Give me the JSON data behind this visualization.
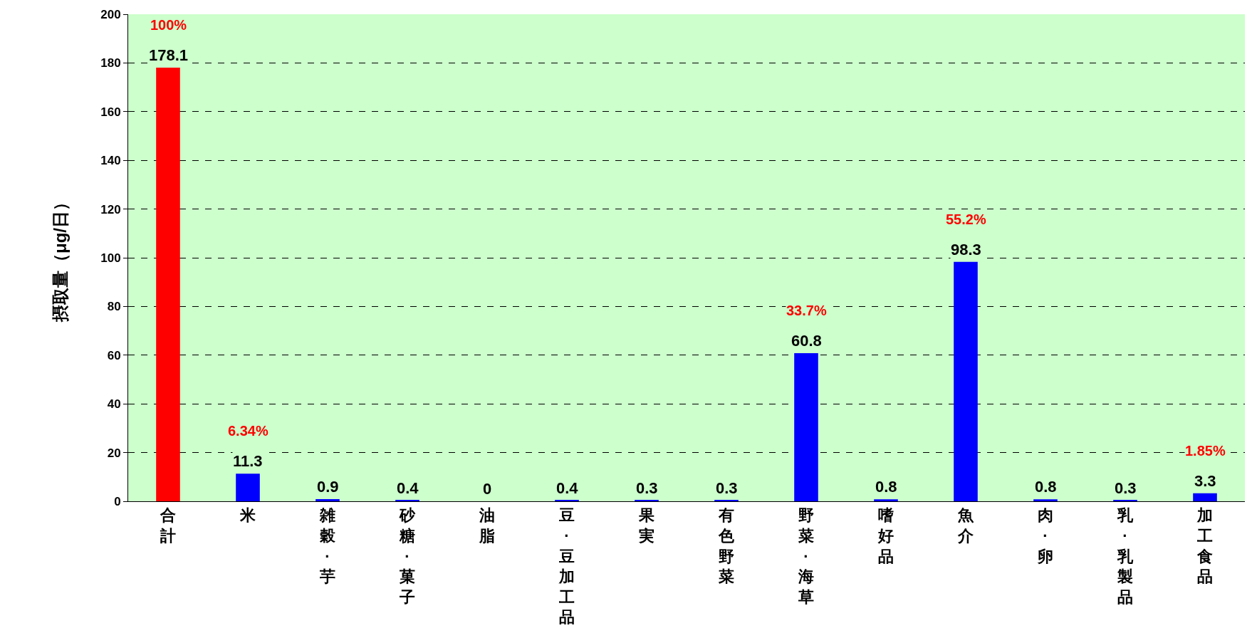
{
  "chart_data": {
    "type": "bar",
    "ylabel": "摂取量（μg/日）",
    "categories": [
      "合計",
      "米",
      "雑穀·芋",
      "砂糖·菓子",
      "油脂",
      "豆·豆加工品",
      "果実",
      "有色野菜",
      "野菜·海草",
      "嗜好品",
      "魚介",
      "肉·卵",
      "乳·乳製品",
      "加工食品"
    ],
    "values": [
      178.1,
      11.3,
      0.9,
      0.4,
      0,
      0.4,
      0.3,
      0.3,
      60.8,
      0.8,
      98.3,
      0.8,
      0.3,
      3.3
    ],
    "colors": [
      "#ff0000",
      "#0000ff",
      "#0000ff",
      "#0000ff",
      "#0000ff",
      "#0000ff",
      "#0000ff",
      "#0000ff",
      "#0000ff",
      "#0000ff",
      "#0000ff",
      "#0000ff",
      "#0000ff",
      "#0000ff"
    ],
    "data_labels": true,
    "annotations": [
      {
        "text": "100%",
        "x": "合計",
        "y": 178.1
      },
      {
        "text": "6.34%",
        "x": "米",
        "y": 11.3
      },
      {
        "text": "33.7%",
        "x": "野菜·海草",
        "y": 60.8
      },
      {
        "text": "55.2%",
        "x": "魚介",
        "y": 98.3
      },
      {
        "text": "1.85%",
        "x": "加工食品",
        "y": 3.3
      }
    ],
    "ylim": [
      0,
      200
    ],
    "yticks": [
      0,
      20,
      40,
      60,
      80,
      100,
      120,
      140,
      160,
      180,
      200
    ],
    "grid": "y",
    "legend": false
  }
}
